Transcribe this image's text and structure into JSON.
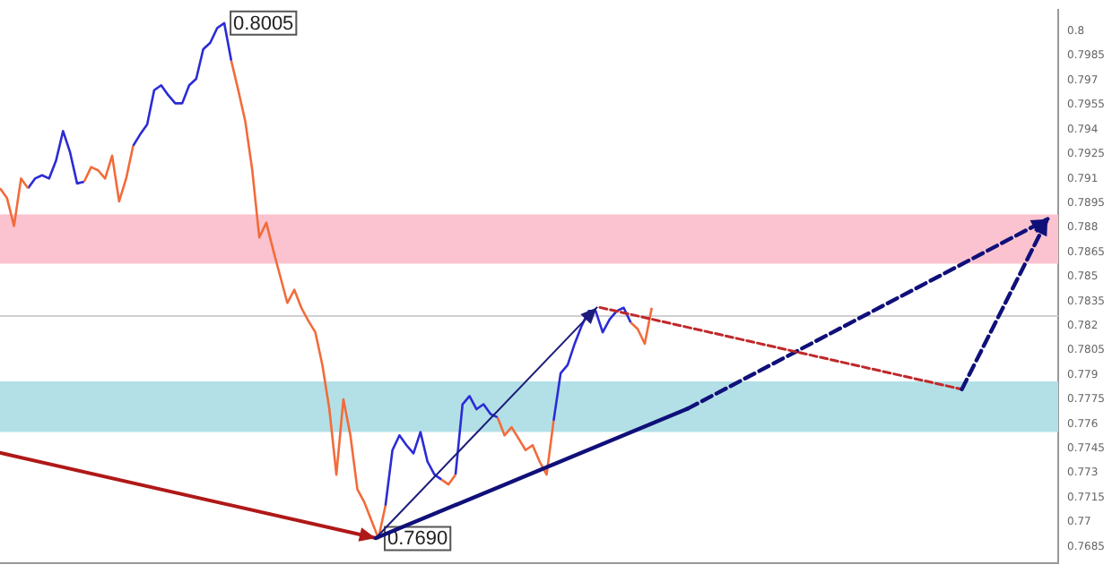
{
  "chart_data": {
    "type": "line",
    "marker": "none",
    "tick_labels": "y",
    "ylim": [
      0.7675,
      0.8013
    ],
    "yticks": [
      0.7685,
      0.77,
      0.7715,
      0.773,
      0.7745,
      0.776,
      0.7775,
      0.779,
      0.7805,
      0.782,
      0.7835,
      0.785,
      0.7865,
      0.788,
      0.7895,
      0.791,
      0.7925,
      0.794,
      0.7955,
      0.797,
      0.7985,
      0.8
    ],
    "categories": [
      null,
      null,
      null,
      null,
      null,
      null,
      null,
      null,
      null,
      null,
      null,
      null,
      null,
      null,
      null,
      null,
      null,
      null,
      null,
      null,
      null,
      null,
      null,
      null,
      null,
      null,
      null,
      null,
      null,
      null,
      null,
      null,
      null,
      null,
      null,
      null,
      null,
      null,
      null,
      null,
      null,
      null,
      null,
      null,
      null,
      null,
      null,
      null,
      null,
      null,
      null,
      null,
      null,
      null,
      null,
      null,
      null,
      null,
      null,
      null,
      null,
      null,
      null,
      null,
      null,
      null,
      null,
      null,
      null,
      null,
      null,
      null,
      null,
      null,
      null,
      null,
      null,
      null,
      null,
      null,
      null,
      null,
      null,
      null,
      null,
      null,
      null,
      null,
      null,
      null,
      null,
      null,
      null,
      null,
      null,
      null,
      null,
      null,
      null,
      null,
      null,
      null,
      null,
      null,
      null,
      null,
      null,
      null,
      null,
      null,
      null,
      null,
      null,
      null,
      null,
      null,
      null,
      null,
      null,
      null,
      null,
      null,
      null,
      null,
      null,
      null,
      null,
      null,
      null,
      null,
      null,
      null,
      null,
      null,
      null,
      null,
      null,
      null,
      null,
      null,
      null,
      null,
      null,
      null,
      null,
      null,
      null,
      null,
      null,
      null,
      null,
      null
    ],
    "series": [
      {
        "color": "#f26b3a",
        "values": [
          0.7904,
          0.7898,
          0.7881,
          0.791,
          0.7904,
          null,
          null,
          null,
          null,
          null,
          null,
          null,
          0.7908,
          0.7917,
          0.7915,
          0.791,
          0.7924,
          0.7896,
          0.791,
          0.793,
          null,
          null,
          null,
          null,
          null,
          null,
          null,
          null,
          null,
          null,
          null,
          null,
          null,
          0.7982,
          0.7964,
          0.7945,
          0.7915,
          0.7874,
          0.7883,
          0.7866,
          0.785,
          0.7834,
          0.7842,
          0.7831,
          0.7823,
          0.7816,
          0.7796,
          0.7769,
          0.7729,
          0.7775,
          0.7753,
          0.772,
          0.7712,
          0.7701,
          0.769,
          0.771,
          null,
          null,
          null,
          null,
          null,
          null,
          null,
          0.7726,
          0.7723,
          0.7729,
          null,
          null,
          null,
          null,
          null,
          0.7764,
          0.7753,
          0.7758,
          0.7751,
          0.7744,
          0.7747,
          0.7737,
          0.7729,
          0.7762,
          null,
          null,
          null,
          null,
          null,
          null,
          null,
          null,
          null,
          null,
          0.7822,
          0.7818,
          0.7809,
          0.7831,
          null,
          null,
          null,
          null,
          null,
          null,
          null,
          null,
          null,
          null,
          null,
          null,
          null,
          null,
          null,
          null,
          null,
          null,
          null,
          null,
          null,
          null,
          null,
          null,
          null,
          null,
          null,
          null,
          null,
          null,
          null,
          null,
          null,
          null,
          null,
          null,
          null,
          null,
          null,
          null,
          null,
          null,
          null,
          null,
          null,
          null,
          null,
          null,
          null,
          null,
          null,
          null,
          null,
          null,
          null,
          null,
          null,
          null
        ]
      },
      {
        "color": "#2b2bd6",
        "values": [
          null,
          null,
          null,
          null,
          0.7904,
          0.791,
          0.7912,
          0.791,
          0.7921,
          0.7939,
          0.7926,
          0.7907,
          0.7908,
          null,
          null,
          null,
          null,
          null,
          null,
          0.793,
          0.7937,
          0.7943,
          0.7964,
          0.7967,
          0.7961,
          0.7956,
          0.7956,
          0.7967,
          0.7971,
          0.7989,
          0.7993,
          0.8002,
          0.8005,
          0.7982,
          null,
          null,
          null,
          null,
          null,
          null,
          null,
          null,
          null,
          null,
          null,
          null,
          null,
          null,
          null,
          null,
          null,
          null,
          null,
          null,
          null,
          0.771,
          0.7744,
          0.7753,
          0.7747,
          0.7742,
          0.7755,
          0.7737,
          0.7729,
          0.7726,
          null,
          0.7729,
          0.7772,
          0.7777,
          0.7769,
          0.7772,
          0.7766,
          0.7764,
          null,
          null,
          null,
          null,
          null,
          null,
          null,
          0.7762,
          0.7791,
          0.7796,
          0.7809,
          0.782,
          0.7829,
          0.7829,
          0.7816,
          0.7824,
          0.7829,
          0.7831,
          0.7822,
          null,
          null,
          null,
          null,
          null,
          null,
          null,
          null,
          null,
          null,
          null,
          null,
          null,
          null,
          null,
          null,
          null,
          null,
          null,
          null,
          null,
          null,
          null,
          null,
          null,
          null,
          null,
          null,
          null,
          null,
          null,
          null,
          null,
          null,
          null,
          null,
          null,
          null,
          null,
          null,
          null,
          null,
          null,
          null,
          null,
          null,
          null,
          null,
          null,
          null,
          null,
          null,
          null,
          null,
          null,
          null,
          null,
          null,
          null,
          null,
          null
        ]
      }
    ],
    "bands": [
      {
        "axis": "y",
        "from": 0.7858,
        "to": 0.7888,
        "color": "#fbc3cf"
      },
      {
        "axis": "y",
        "from": 0.7755,
        "to": 0.7786,
        "color": "#b2e0e6"
      }
    ],
    "ref_lines": [
      {
        "axis": "y",
        "value": 0.7826,
        "color": "#d0d0d0"
      }
    ],
    "annotations": [
      {
        "text": "0.8005",
        "y": 0.8005
      },
      {
        "text": "0.7690",
        "y": 0.769
      }
    ]
  }
}
